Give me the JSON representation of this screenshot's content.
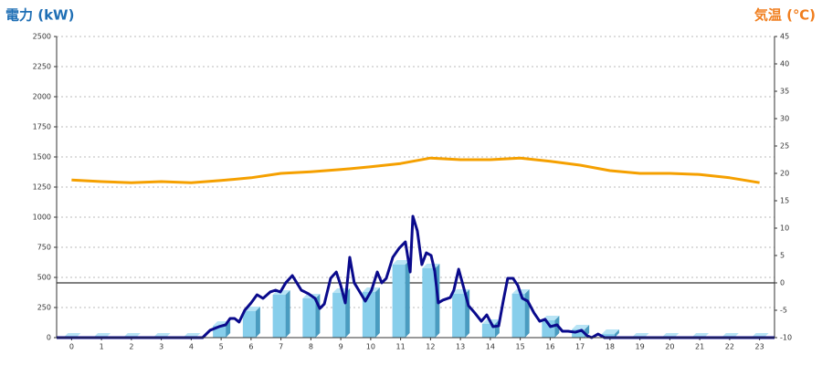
{
  "chart_data": {
    "type": "bar_line",
    "y_label": "電力 (kW)",
    "y2_label": "気温 (℃)",
    "y_label_color": "#1f6fb5",
    "y2_label_color": "#f07e1e",
    "xlim": [
      -0.5,
      23.5
    ],
    "xticks": [
      0,
      1,
      2,
      3,
      4,
      5,
      6,
      7,
      8,
      9,
      10,
      11,
      12,
      13,
      14,
      15,
      16,
      17,
      18,
      19,
      20,
      21,
      22,
      23
    ],
    "ylim": [
      0,
      2500
    ],
    "yticks": [
      0,
      250,
      500,
      750,
      1000,
      1250,
      1500,
      1750,
      2000,
      2250,
      2500
    ],
    "y2lim": [
      -10,
      45
    ],
    "y2ticks": [
      -10,
      -5,
      0,
      5,
      10,
      15,
      20,
      25,
      30,
      35,
      40,
      45
    ],
    "grid": true,
    "zero_line_axis": "y2",
    "series": [
      {
        "type": "bar",
        "color": "#87ceeb",
        "x": [
          0,
          1,
          2,
          3,
          4,
          5,
          6,
          7,
          8,
          9,
          10,
          11,
          12,
          13,
          14,
          15,
          16,
          17,
          18,
          19,
          20,
          21,
          22,
          23
        ],
        "values": [
          0,
          0,
          0,
          0,
          0,
          98,
          220,
          356,
          326,
          371,
          379,
          606,
          576,
          364,
          114,
          364,
          144,
          68,
          30,
          0,
          0,
          0,
          0,
          0
        ]
      },
      {
        "type": "line",
        "color": "#0a0a8c",
        "x": [
          -0.5,
          4.38,
          4.63,
          4.93,
          5.15,
          5.3,
          5.45,
          5.6,
          5.79,
          6.0,
          6.2,
          6.4,
          6.64,
          6.82,
          6.98,
          7.16,
          7.38,
          7.53,
          7.68,
          7.92,
          8.14,
          8.3,
          8.45,
          8.66,
          8.85,
          9.0,
          9.15,
          9.3,
          9.45,
          9.6,
          9.82,
          10.03,
          10.22,
          10.37,
          10.52,
          10.74,
          10.95,
          11.16,
          11.32,
          11.41,
          11.56,
          11.71,
          11.86,
          12.02,
          12.14,
          12.26,
          12.41,
          12.66,
          12.78,
          12.94,
          13.09,
          13.27,
          13.48,
          13.7,
          13.88,
          14.09,
          14.28,
          14.43,
          14.58,
          14.76,
          14.92,
          15.07,
          15.25,
          15.46,
          15.65,
          15.83,
          16.01,
          16.23,
          16.41,
          16.6,
          16.84,
          17.05,
          17.24,
          17.39,
          17.6,
          17.82,
          23.5
        ],
        "values": [
          0,
          0,
          61,
          91,
          106,
          159,
          159,
          129,
          227,
          288,
          356,
          326,
          379,
          394,
          379,
          455,
          515,
          455,
          394,
          364,
          326,
          242,
          280,
          492,
          545,
          432,
          288,
          667,
          455,
          394,
          303,
          394,
          545,
          455,
          492,
          667,
          742,
          795,
          545,
          1008,
          886,
          606,
          704,
          682,
          553,
          288,
          311,
          333,
          394,
          568,
          432,
          265,
          205,
          136,
          189,
          91,
          98,
          303,
          492,
          492,
          432,
          326,
          303,
          205,
          136,
          152,
          91,
          106,
          53,
          53,
          45,
          61,
          15,
          0,
          30,
          0,
          0
        ]
      },
      {
        "type": "line",
        "axis": "y2",
        "color": "#f5a000",
        "x": [
          0,
          1,
          2,
          3,
          4,
          5,
          6,
          7,
          8,
          9,
          10,
          11,
          12,
          13,
          14,
          15,
          16,
          17,
          18,
          19,
          20,
          21,
          22,
          23
        ],
        "values": [
          18.8,
          18.5,
          18.3,
          18.5,
          18.3,
          18.7,
          19.2,
          20.0,
          20.3,
          20.7,
          21.2,
          21.8,
          22.8,
          22.5,
          22.5,
          22.8,
          22.2,
          21.5,
          20.5,
          20.0,
          20.0,
          19.8,
          19.2,
          18.3
        ]
      }
    ]
  }
}
